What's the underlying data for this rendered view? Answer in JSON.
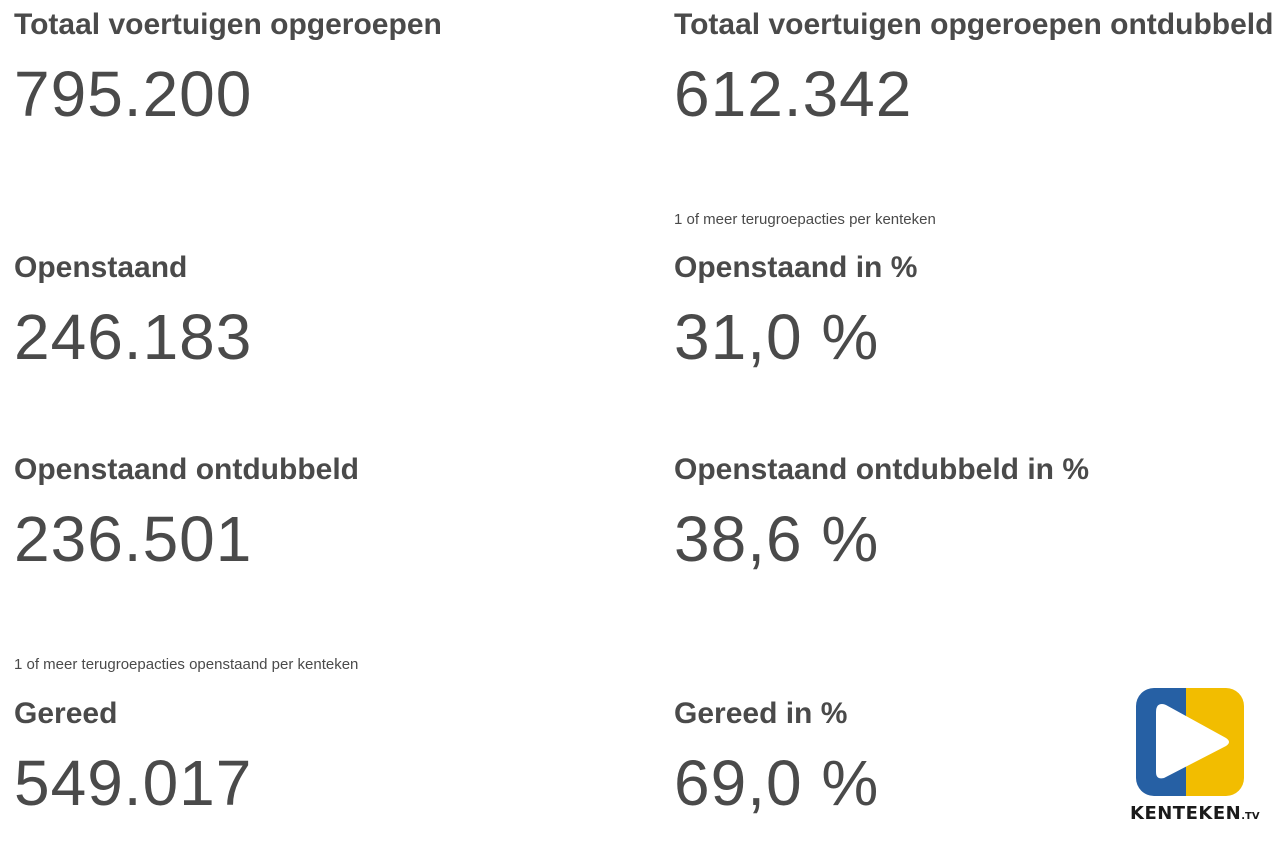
{
  "stats": [
    {
      "title": "Totaal voertuigen opgeroepen",
      "value": "795.200"
    },
    {
      "title": "Totaal voertuigen opgeroepen ontdubbeld",
      "value": "612.342"
    },
    {
      "title": "Openstaand",
      "value": "246.183"
    },
    {
      "title": "Openstaand in %",
      "value": "31,0 %"
    },
    {
      "title": "Openstaand ontdubbeld",
      "value": "236.501"
    },
    {
      "title": "Openstaand ontdubbeld in %",
      "value": "38,6 %"
    },
    {
      "title": "Gereed",
      "value": "549.017"
    },
    {
      "title": "Gereed in %",
      "value": "69,0 %"
    }
  ],
  "notes": {
    "ontdubbeld_note": "1 of meer terugroepacties per kenteken",
    "openstaand_note": "1 of meer terugroepacties openstaand per kenteken"
  },
  "logo": {
    "name": "KENTEKEN",
    "suffix": ".TV",
    "colors": {
      "blue": "#2660a4",
      "yellow": "#f2bd00",
      "white": "#ffffff"
    },
    "icon": "play-icon"
  }
}
